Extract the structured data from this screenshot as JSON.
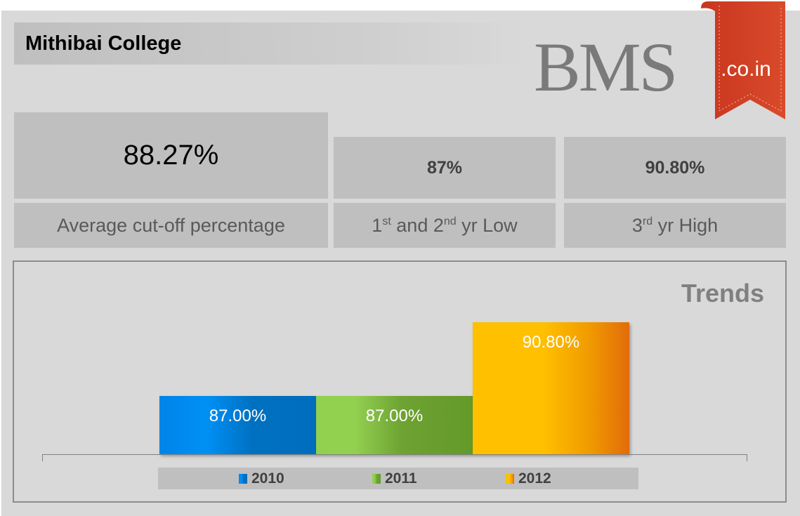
{
  "header": {
    "title": "Mithibai College",
    "logo_text": "BMS",
    "logo_suffix": ".co.in"
  },
  "stats": [
    {
      "value": "88.27%",
      "label": "Average cut-off percentage"
    },
    {
      "value": "87%",
      "label_parts": [
        "1",
        "st",
        " and 2",
        "nd",
        " yr Low"
      ]
    },
    {
      "value": "90.80%",
      "label_parts": [
        "3",
        "rd",
        " yr High"
      ]
    }
  ],
  "colors": {
    "2010": "#0070c0",
    "2011": "#639a2a",
    "2012": "#ffc000"
  },
  "chart_data": {
    "type": "bar",
    "title": "Trends",
    "categories": [
      "2010",
      "2011",
      "2012"
    ],
    "values": [
      87.0,
      87.0,
      90.8
    ],
    "data_labels": [
      "87.00%",
      "87.00%",
      "90.80%"
    ],
    "ylim": [
      84,
      91
    ],
    "legend": [
      "2010",
      "2011",
      "2012"
    ],
    "legend_position": "bottom",
    "grid": false
  }
}
